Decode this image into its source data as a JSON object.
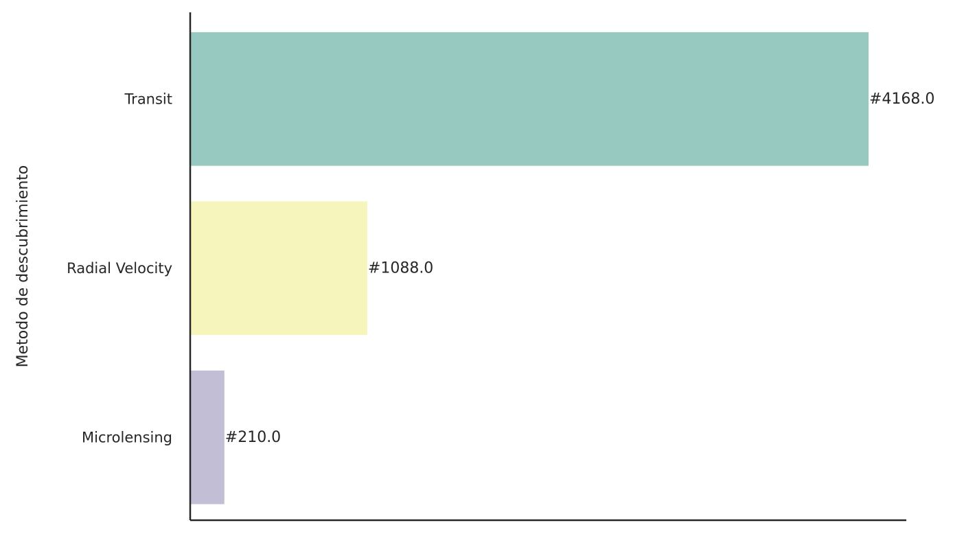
{
  "chart_data": {
    "type": "bar",
    "orientation": "horizontal",
    "title": "",
    "xlabel": "",
    "ylabel": "Metodo de descubrimiento",
    "categories": [
      "Transit",
      "Radial Velocity",
      "Microlensing"
    ],
    "values": [
      4168,
      1088,
      210
    ],
    "data_labels": [
      "#4168.0",
      "#1088.0",
      "#210.0"
    ],
    "colors": [
      "#97c9c0",
      "#f6f6bc",
      "#c2bed6"
    ],
    "xlim": [
      0,
      4400
    ],
    "x_ticks_shown": false,
    "grid": false,
    "legend": "none",
    "spines": [
      "left",
      "bottom"
    ]
  }
}
